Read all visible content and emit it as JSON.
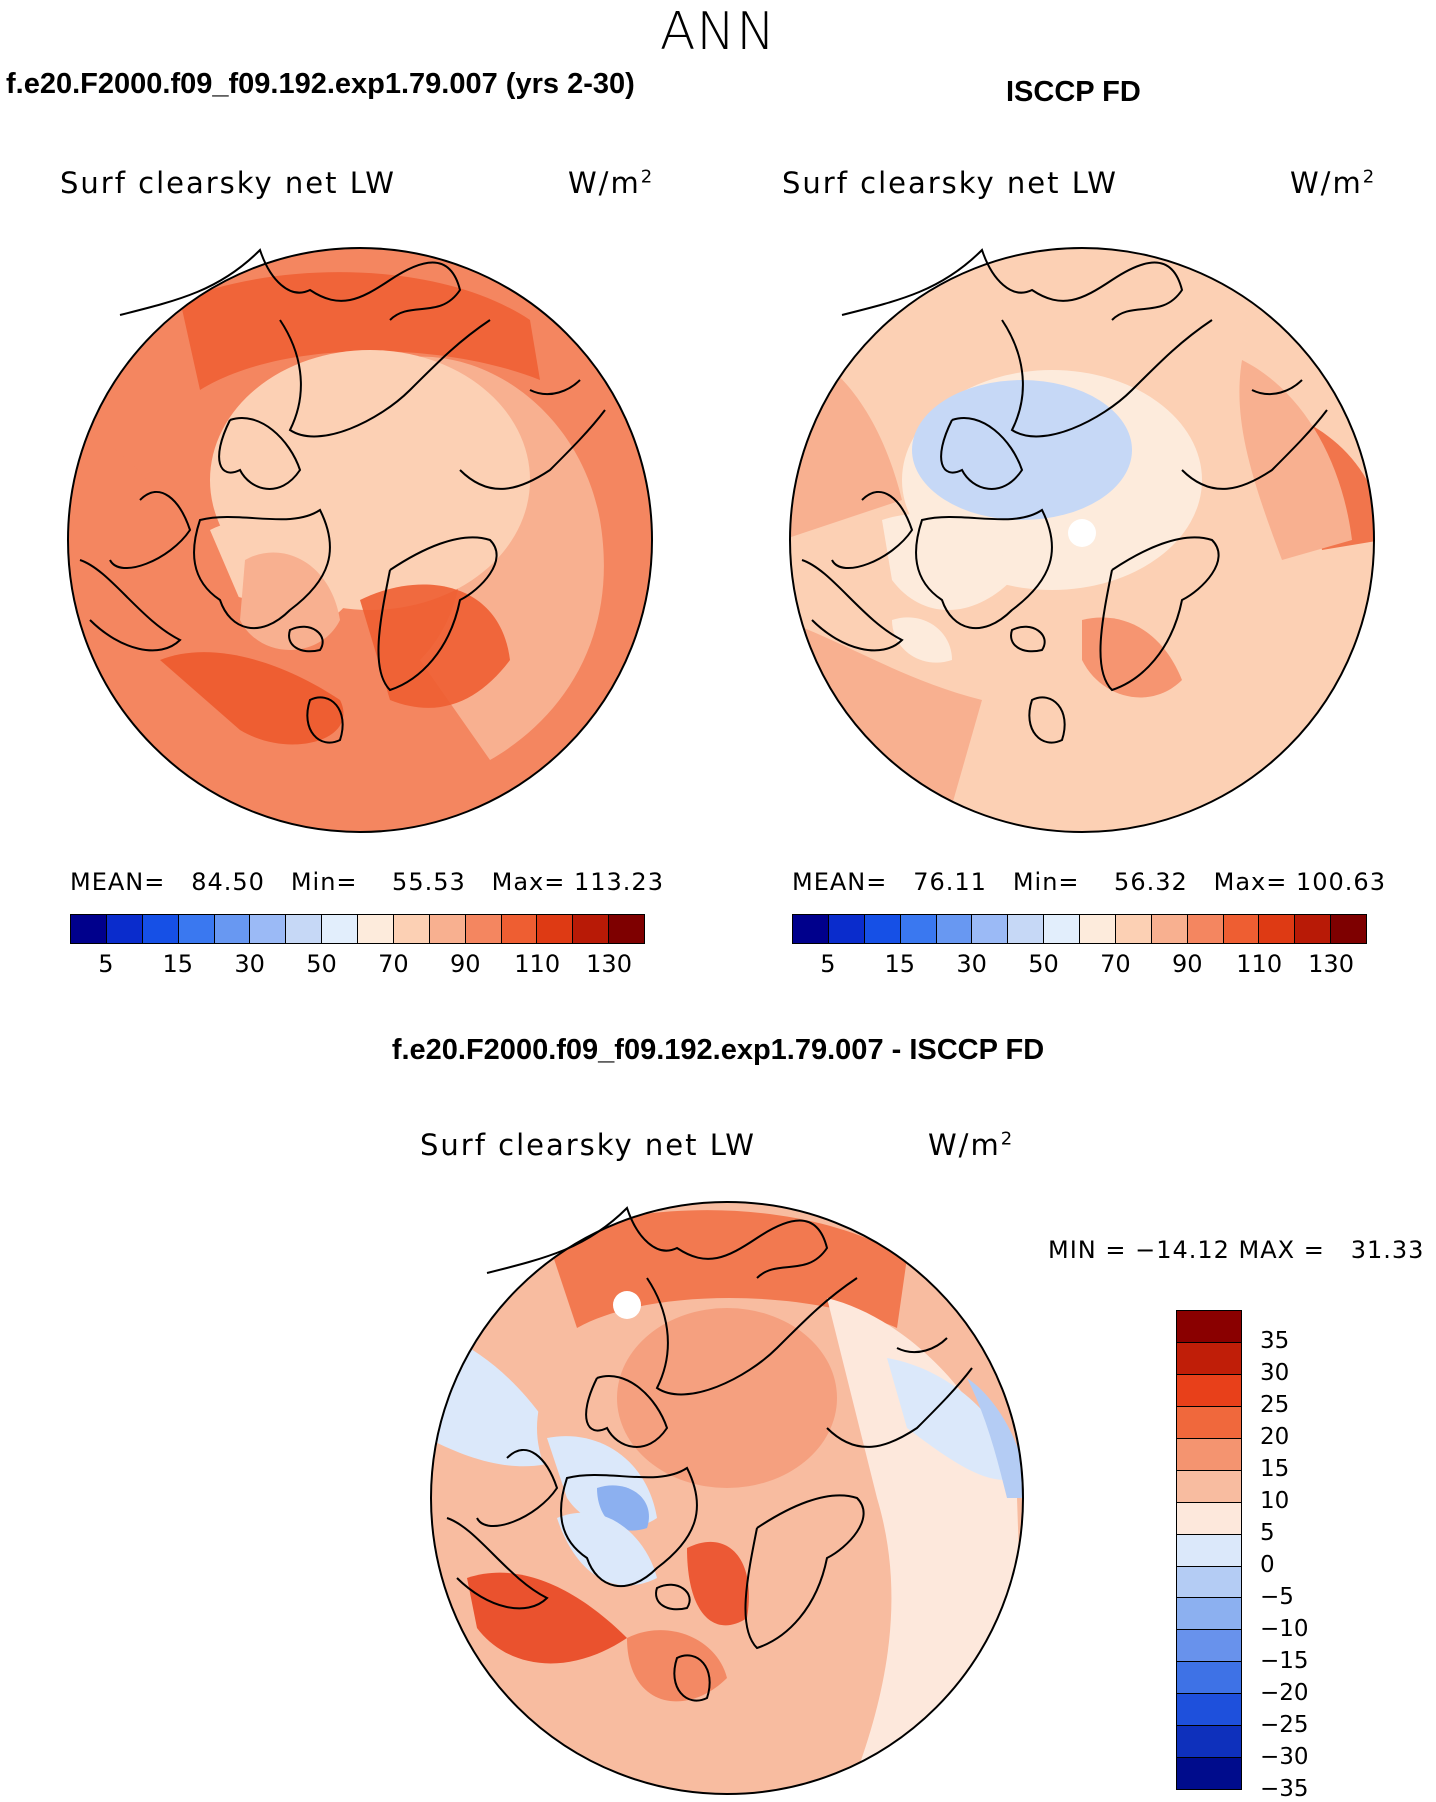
{
  "page_title": "ANN",
  "panels": [
    {
      "case_title": "f.e20.F2000.f09_f09.192.exp1.79.007 (yrs 2-30)",
      "variable": "Surf clearsky net LW",
      "units": "W/m",
      "units_exp": "2",
      "stats": "MEAN=   84.50   Min=    55.53   Max= 113.23"
    },
    {
      "case_title": "ISCCP FD",
      "variable": "Surf clearsky net LW",
      "units": "W/m",
      "units_exp": "2",
      "stats": "MEAN=   76.11   Min=    56.32   Max= 100.63"
    }
  ],
  "colorbar": {
    "colors": [
      "#00008c",
      "#0a2ccc",
      "#1650e6",
      "#3a78f0",
      "#6898f2",
      "#9bbaf6",
      "#c6d8f6",
      "#e2eefc",
      "#fdebdc",
      "#fcd0b4",
      "#f8b090",
      "#f48660",
      "#ee5e32",
      "#de3a14",
      "#b81a06",
      "#7e0000"
    ],
    "tick_labels": [
      "5",
      "15",
      "30",
      "50",
      "70",
      "90",
      "110",
      "130"
    ]
  },
  "diff_panel": {
    "case_title": "f.e20.F2000.f09_f09.192.exp1.79.007 - ISCCP FD",
    "variable": "Surf clearsky net LW",
    "units": "W/m",
    "units_exp": "2",
    "minmax": "MIN = −14.12 MAX =   31.33",
    "colorbar": {
      "colors": [
        "#8a0000",
        "#c01e08",
        "#e8401a",
        "#f0683c",
        "#f49470",
        "#f8bca0",
        "#fde8dc",
        "#dbe8fa",
        "#b4ccf4",
        "#8cb0f0",
        "#6892ec",
        "#3e72e6",
        "#1e50dc",
        "#0e30bc",
        "#000c8c"
      ],
      "tick_labels": [
        "35",
        "30",
        "25",
        "20",
        "15",
        "10",
        "5",
        "0",
        "−5",
        "−10",
        "−15",
        "−20",
        "−25",
        "−30",
        "−35"
      ]
    }
  }
}
